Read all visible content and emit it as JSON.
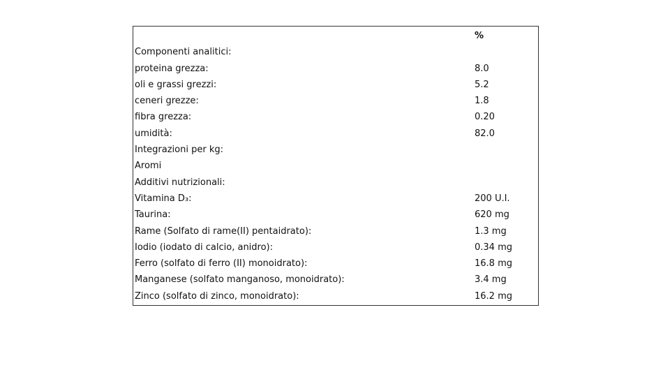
{
  "table": {
    "header": "%",
    "rows": [
      [
        "Componenti analitici:"
      ],
      [
        "proteina grezza:",
        "8.0"
      ],
      [
        "oli e grassi grezzi:",
        "5.2"
      ],
      [
        "ceneri grezze:",
        "1.8"
      ],
      [
        "fibra grezza:",
        "0.20"
      ],
      [
        "umidità:",
        "82.0"
      ],
      [
        "Integrazioni per kg:"
      ],
      [
        "Aromi"
      ],
      [
        "Additivi nutrizionali:"
      ],
      [
        "Vitamina D₃:",
        "200 U.I."
      ],
      [
        "Taurina:",
        "620 mg"
      ],
      [
        "Rame (Solfato di rame(II) pentaidrato):",
        "1.3 mg"
      ],
      [
        "Iodio (iodato di calcio, anidro):",
        "0.34 mg"
      ],
      [
        "Ferro (solfato di ferro (II) monoidrato):",
        "16.8 mg"
      ],
      [
        "Manganese (solfato manganoso, monoidrato):",
        "3.4 mg"
      ],
      [
        "Zinco (solfato di zinco, monoidrato):",
        "16.2 mg"
      ]
    ]
  }
}
